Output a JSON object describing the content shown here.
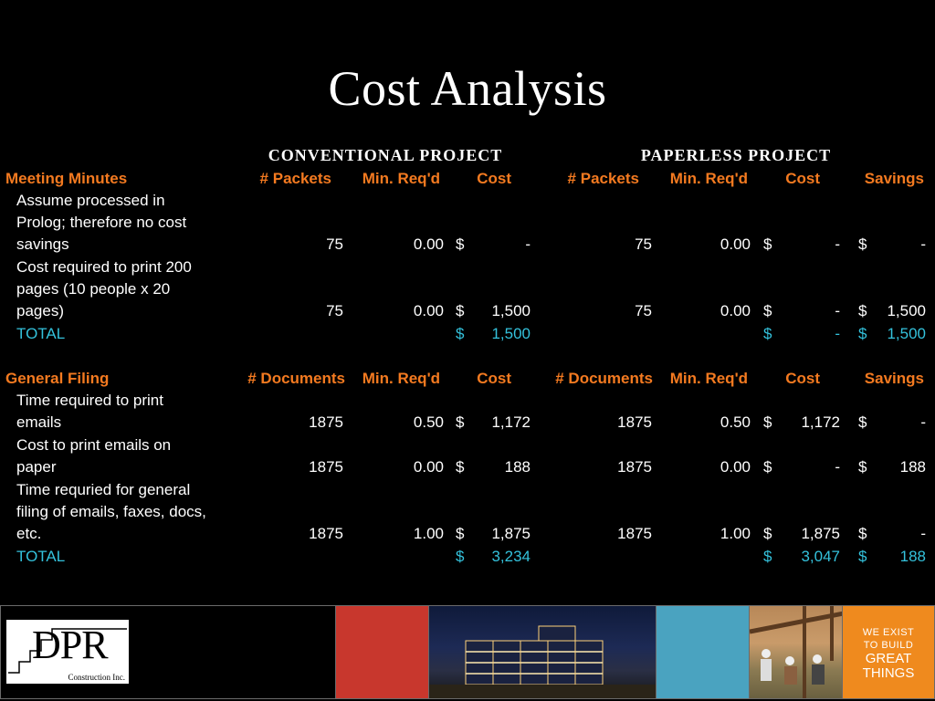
{
  "title": "Cost Analysis",
  "projects": {
    "conventional": "CONVENTIONAL PROJECT",
    "paperless": "PAPERLESS PROJECT"
  },
  "meeting": {
    "section": "Meeting Minutes",
    "cols": {
      "count": "# Packets",
      "min": "Min. Req'd",
      "cost": "Cost",
      "savings": "Savings"
    },
    "rows": [
      {
        "desc": [
          "Assume processed in",
          "Prolog; therefore no cost",
          "savings"
        ],
        "conv": {
          "count": "75",
          "min": "0.00",
          "cur": "$",
          "cost": "-"
        },
        "paper": {
          "count": "75",
          "min": "0.00",
          "cur": "$",
          "cost": "-"
        },
        "savings": {
          "cur": "$",
          "val": "-"
        }
      },
      {
        "desc": [
          "Cost required to print 200",
          "pages (10 people x 20",
          "pages)"
        ],
        "conv": {
          "count": "75",
          "min": "0.00",
          "cur": "$",
          "cost": "1,500"
        },
        "paper": {
          "count": "75",
          "min": "0.00",
          "cur": "$",
          "cost": "-"
        },
        "savings": {
          "cur": "$",
          "val": "1,500"
        }
      }
    ],
    "total": {
      "label": "TOTAL",
      "conv": {
        "cur": "$",
        "cost": "1,500"
      },
      "paper": {
        "cur": "$",
        "cost": "-"
      },
      "savings": {
        "cur": "$",
        "val": "1,500"
      }
    }
  },
  "filing": {
    "section": "General Filing",
    "cols": {
      "count": "# Documents",
      "min": "Min. Req'd",
      "cost": "Cost",
      "savings": "Savings"
    },
    "rows": [
      {
        "desc": [
          "Time required to print",
          "emails"
        ],
        "conv": {
          "count": "1875",
          "min": "0.50",
          "cur": "$",
          "cost": "1,172"
        },
        "paper": {
          "count": "1875",
          "min": "0.50",
          "cur": "$",
          "cost": "1,172"
        },
        "savings": {
          "cur": "$",
          "val": "-"
        }
      },
      {
        "desc": [
          "Cost to print emails on",
          "paper"
        ],
        "conv": {
          "count": "1875",
          "min": "0.00",
          "cur": "$",
          "cost": "188"
        },
        "paper": {
          "count": "1875",
          "min": "0.00",
          "cur": "$",
          "cost": "-"
        },
        "savings": {
          "cur": "$",
          "val": "188"
        }
      },
      {
        "desc": [
          "Time requried for general",
          "filing of emails, faxes, docs,",
          "etc."
        ],
        "conv": {
          "count": "1875",
          "min": "1.00",
          "cur": "$",
          "cost": "1,875"
        },
        "paper": {
          "count": "1875",
          "min": "1.00",
          "cur": "$",
          "cost": "1,875"
        },
        "savings": {
          "cur": "$",
          "val": "-"
        }
      }
    ],
    "total": {
      "label": "TOTAL",
      "conv": {
        "cur": "$",
        "cost": "3,234"
      },
      "paper": {
        "cur": "$",
        "cost": "3,047"
      },
      "savings": {
        "cur": "$",
        "val": "188"
      }
    }
  },
  "footer": {
    "logo": "DPR",
    "logo_sub": "Construction Inc.",
    "tagline": [
      "WE EXIST",
      "TO BUILD",
      "GREAT",
      "THINGS"
    ],
    "colors": {
      "red": "#c8372d",
      "blue": "#4aa3c0",
      "orange": "#ef8a1e"
    }
  }
}
